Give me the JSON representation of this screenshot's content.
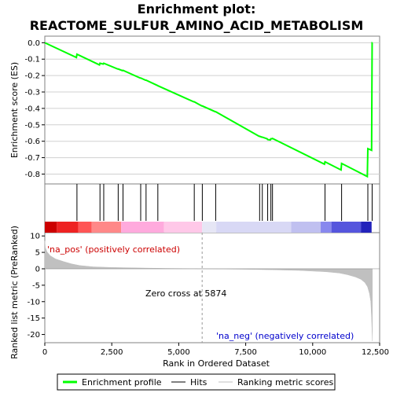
{
  "chart_data": {
    "type": "line",
    "title": "Enrichment plot:\nREACTOME_SULFUR_AMINO_ACID_METABOLISM",
    "title_lines": [
      "Enrichment plot:",
      "REACTOME_SULFUR_AMINO_ACID_METABOLISM"
    ],
    "es_panel": {
      "ylabel": "Enrichment score (ES)",
      "ylim": [
        -0.86,
        0.04
      ],
      "yticks": [
        0.0,
        -0.1,
        -0.2,
        -0.3,
        -0.4,
        -0.5,
        -0.6,
        -0.7,
        -0.8
      ],
      "ytick_labels": [
        "0.0",
        "-0.1",
        "-0.2",
        "-0.3",
        "-0.4",
        "-0.5",
        "-0.6",
        "-0.7",
        "-0.8"
      ],
      "grid": true,
      "series": {
        "name": "Enrichment profile",
        "color": "#00ff00",
        "x": [
          0,
          1180,
          1200,
          2040,
          2060,
          2180,
          2200,
          2720,
          2740,
          2900,
          2920,
          3560,
          3580,
          3760,
          3780,
          4200,
          4220,
          5560,
          5580,
          5860,
          5880,
          6360,
          6380,
          8000,
          8020,
          8100,
          8120,
          8300,
          8320,
          8420,
          8440,
          8480,
          8500,
          10440,
          10460,
          11060,
          11080,
          12040,
          12060,
          12200,
          12220,
          12230
        ],
        "y": [
          0.0,
          -0.09,
          -0.07,
          -0.135,
          -0.125,
          -0.13,
          -0.125,
          -0.16,
          -0.16,
          -0.17,
          -0.168,
          -0.215,
          -0.215,
          -0.228,
          -0.228,
          -0.26,
          -0.262,
          -0.36,
          -0.36,
          -0.385,
          -0.385,
          -0.42,
          -0.42,
          -0.57,
          -0.57,
          -0.575,
          -0.575,
          -0.585,
          -0.59,
          -0.592,
          -0.585,
          -0.585,
          -0.583,
          -0.74,
          -0.725,
          -0.775,
          -0.735,
          -0.815,
          -0.645,
          -0.655,
          0.0,
          0.0
        ]
      }
    },
    "hits": {
      "name": "Hits",
      "x": [
        1200,
        2060,
        2200,
        2740,
        2920,
        3580,
        3780,
        4220,
        5580,
        5880,
        6380,
        8020,
        8120,
        8320,
        8440,
        8500,
        10460,
        11080,
        12060,
        12220
      ]
    },
    "rank_bar": {
      "segments": [
        {
          "start": 0,
          "end": 450,
          "color": "#cc0000"
        },
        {
          "start": 450,
          "end": 1250,
          "color": "#ee2222"
        },
        {
          "start": 1250,
          "end": 1750,
          "color": "#ff5555"
        },
        {
          "start": 1750,
          "end": 2850,
          "color": "#ff8888"
        },
        {
          "start": 2850,
          "end": 4450,
          "color": "#ffaadd"
        },
        {
          "start": 4450,
          "end": 5874,
          "color": "#ffc8e8"
        },
        {
          "start": 5874,
          "end": 6400,
          "color": "#e6e6f5"
        },
        {
          "start": 6400,
          "end": 9200,
          "color": "#d8d8f5"
        },
        {
          "start": 9200,
          "end": 10300,
          "color": "#c0c0f0"
        },
        {
          "start": 10300,
          "end": 10700,
          "color": "#8888ee"
        },
        {
          "start": 10700,
          "end": 11800,
          "color": "#5555dd"
        },
        {
          "start": 11800,
          "end": 12200,
          "color": "#2222bb"
        }
      ]
    },
    "metric_panel": {
      "ylabel": "Ranked list metric (PreRanked)",
      "ylim": [
        -22.5,
        11
      ],
      "yticks": [
        10,
        5,
        0,
        -5,
        -10,
        -15,
        -20
      ],
      "ytick_labels": [
        "10",
        "5",
        "0",
        "-5",
        "-10",
        "-15",
        "-20"
      ],
      "series": {
        "name": "Ranking metric scores",
        "color": "#c0c0c0",
        "x": [
          0,
          20,
          80,
          200,
          400,
          700,
          1000,
          1300,
          1800,
          2500,
          3500,
          4500,
          5500,
          5874,
          6500,
          7500,
          8500,
          9500,
          10000,
          10500,
          11000,
          11300,
          11600,
          11800,
          11950,
          12050,
          12120,
          12170,
          12200,
          12230
        ],
        "y": [
          8.5,
          6.5,
          5.2,
          4.0,
          3.0,
          2.2,
          1.5,
          1.0,
          0.6,
          0.4,
          0.25,
          0.12,
          0.04,
          0.0,
          -0.05,
          -0.15,
          -0.3,
          -0.5,
          -0.7,
          -0.9,
          -1.3,
          -1.8,
          -2.5,
          -3.2,
          -4.2,
          -5.5,
          -7.5,
          -10.0,
          -15.0,
          -22.0
        ]
      },
      "zero_cross_label": "Zero cross at 5874",
      "zero_cross": 5874,
      "pos_label": "'na_pos' (positively correlated)",
      "neg_label": "'na_neg' (negatively correlated)"
    },
    "x_axis": {
      "label": "Rank in Ordered Dataset",
      "xlim": [
        0,
        12500
      ],
      "ticks": [
        0,
        2500,
        5000,
        7500,
        10000,
        12500
      ],
      "tick_labels": [
        "0",
        "2,500",
        "5,000",
        "7,500",
        "10,000",
        "12,500"
      ]
    },
    "legend": {
      "placement": "bottom",
      "items": [
        {
          "label": "Enrichment profile",
          "color": "#00ff00"
        },
        {
          "label": "Hits",
          "color": "#000000"
        },
        {
          "label": "Ranking metric scores",
          "color": "#c0c0c0"
        }
      ]
    }
  }
}
